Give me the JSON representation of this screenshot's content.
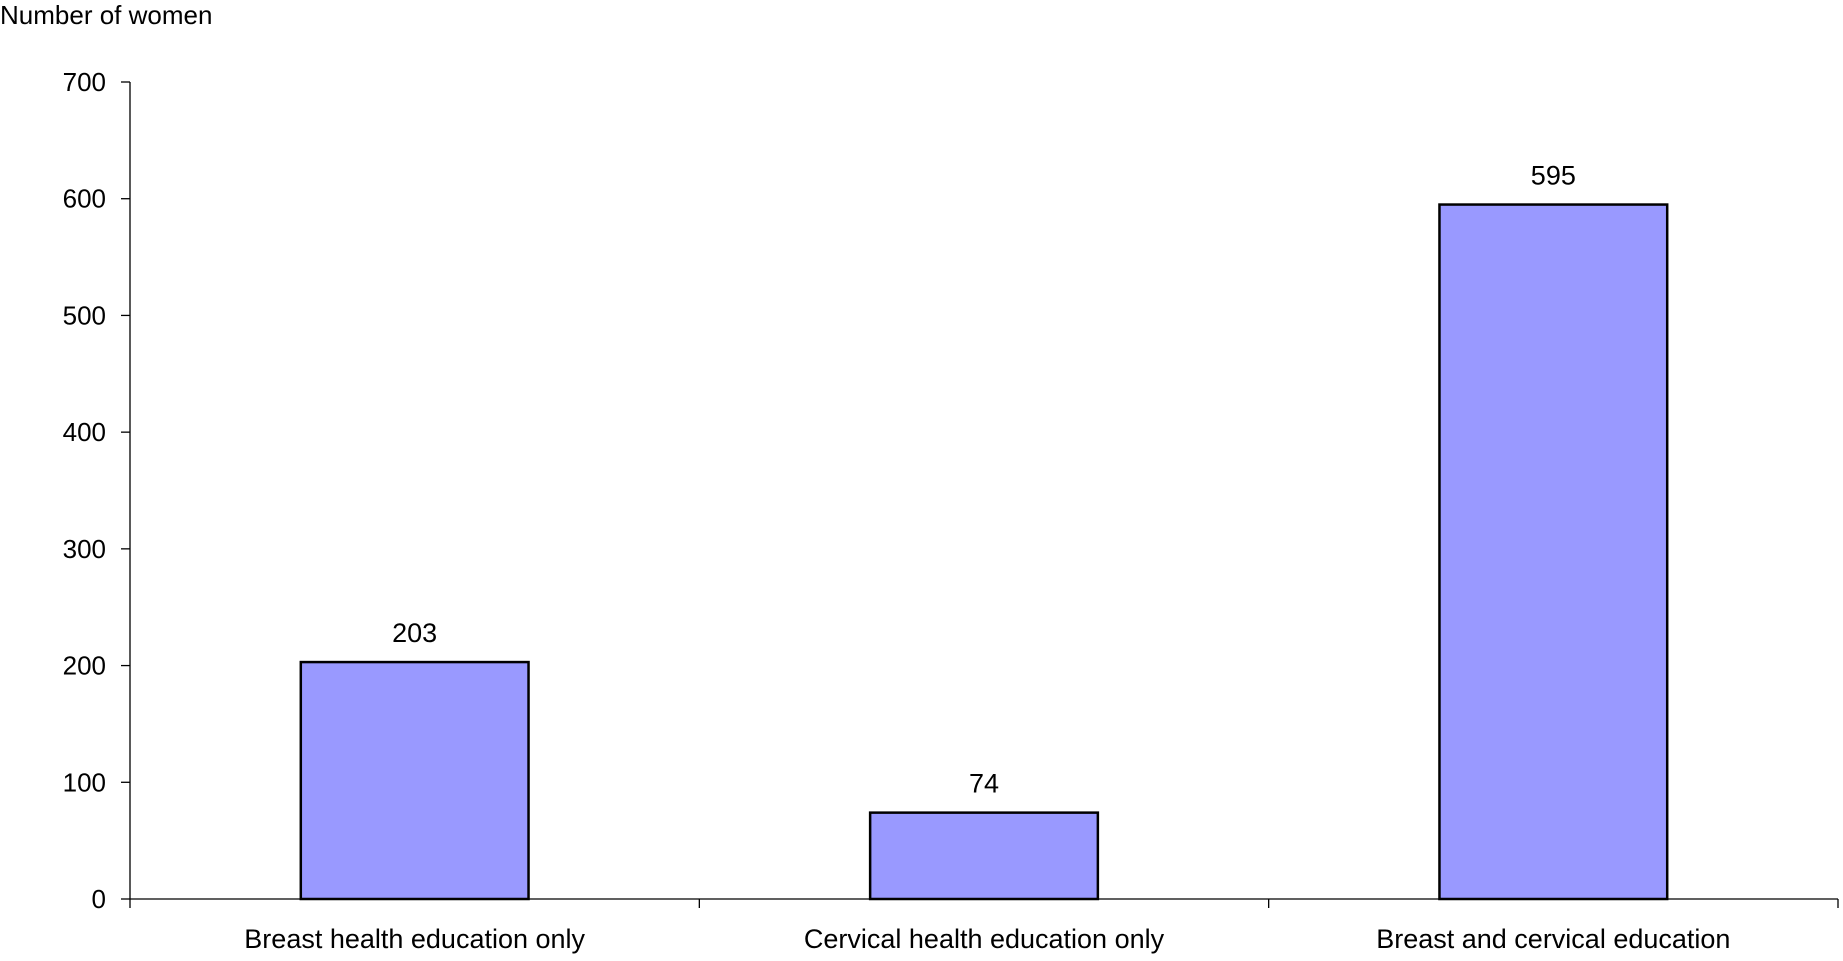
{
  "chart_data": {
    "type": "bar",
    "title": "",
    "xlabel": "",
    "ylabel": "Number of women",
    "categories": [
      "Breast health education only",
      "Cervical health education only",
      "Breast and cervical education"
    ],
    "values": [
      203,
      74,
      595
    ],
    "data_labels": [
      "203",
      "74",
      "595"
    ],
    "ylim": [
      0,
      700
    ],
    "yticks": [
      0,
      100,
      200,
      300,
      400,
      500,
      600,
      700
    ],
    "ytick_labels": [
      "0",
      "100",
      "200",
      "300",
      "400",
      "500",
      "600",
      "700"
    ],
    "grid": false,
    "legend": "none",
    "colors": {
      "bar_fill": "#9999ff",
      "bar_stroke": "#000000",
      "axis": "#000000"
    }
  }
}
